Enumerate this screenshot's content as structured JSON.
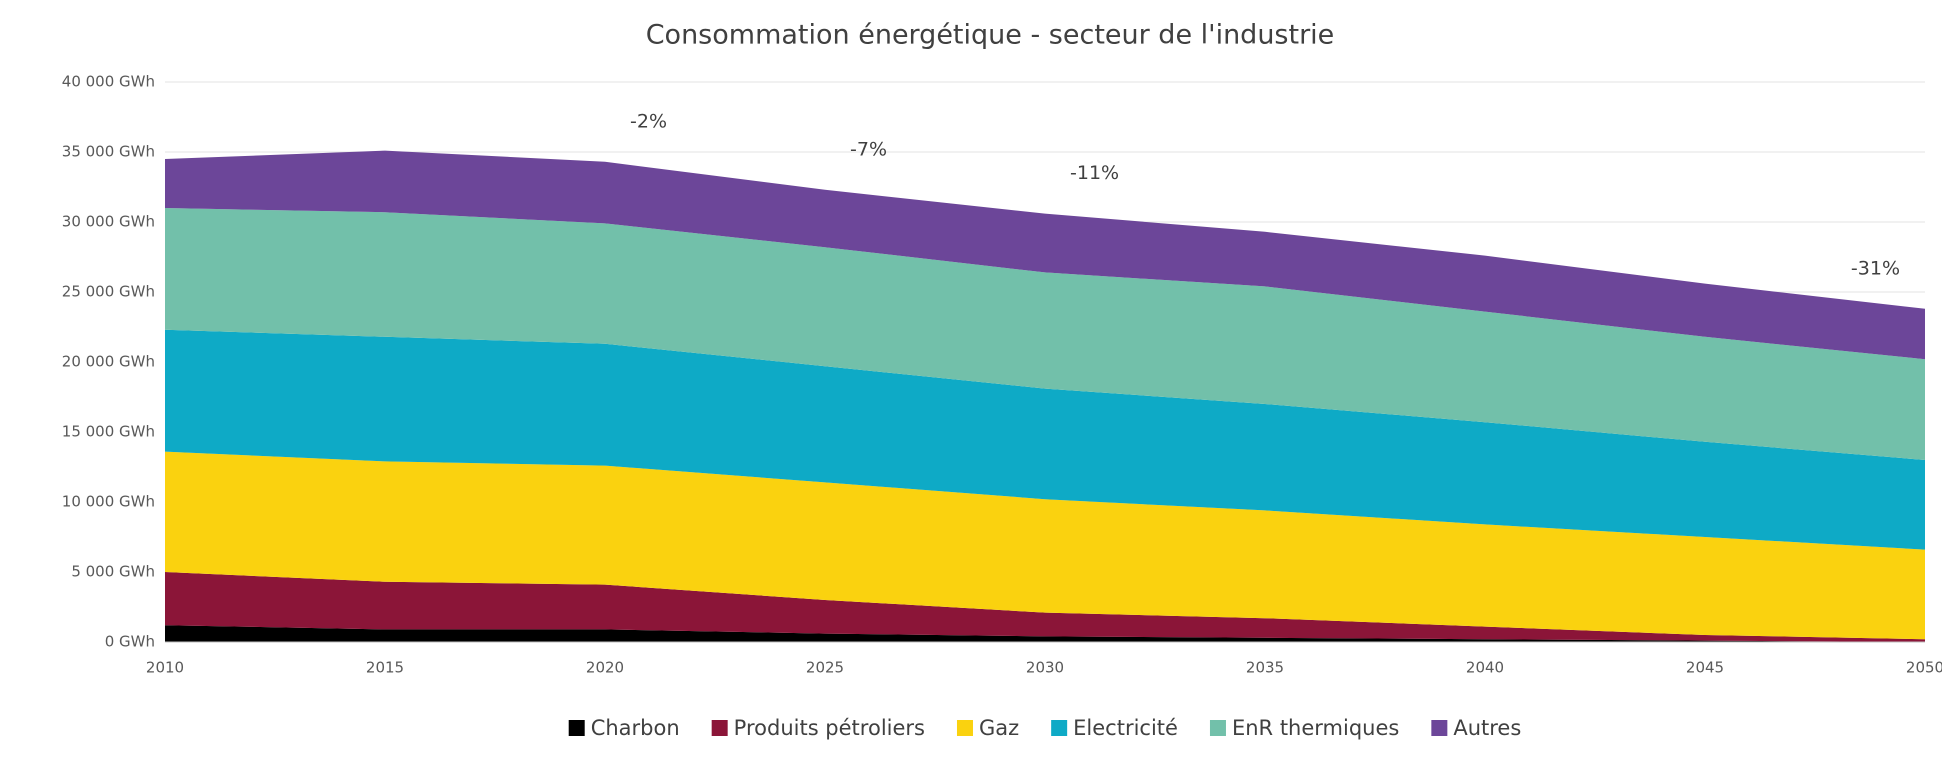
{
  "chart_data": {
    "type": "stacked_area",
    "title": "Consommation énergétique  - secteur de l'industrie",
    "x": [
      2010,
      2015,
      2020,
      2025,
      2030,
      2035,
      2040,
      2045,
      2050
    ],
    "series": [
      {
        "name": "Charbon",
        "color": "#000000",
        "values": [
          1200,
          900,
          900,
          600,
          400,
          300,
          200,
          100,
          0
        ]
      },
      {
        "name": "Produits pétroliers",
        "color": "#8b1538",
        "values": [
          3800,
          3400,
          3200,
          2400,
          1700,
          1400,
          900,
          400,
          200
        ]
      },
      {
        "name": "Gaz",
        "color": "#fad20f",
        "values": [
          8600,
          8600,
          8500,
          8400,
          8100,
          7700,
          7300,
          7000,
          6400
        ]
      },
      {
        "name": "Electricité",
        "color": "#0eaac6",
        "values": [
          8700,
          8900,
          8700,
          8300,
          7900,
          7600,
          7300,
          6800,
          6400
        ]
      },
      {
        "name": "EnR thermiques",
        "color": "#72c0aa",
        "values": [
          8700,
          8900,
          8600,
          8500,
          8300,
          8400,
          7900,
          7500,
          7200
        ]
      },
      {
        "name": "Autres",
        "color": "#6c4699",
        "values": [
          3500,
          4400,
          4400,
          4100,
          4200,
          3900,
          4000,
          3800,
          3600
        ]
      }
    ],
    "xlim": [
      2010,
      2050
    ],
    "xticks": [
      2010,
      2015,
      2020,
      2025,
      2030,
      2035,
      2040,
      2045,
      2050
    ],
    "ylim": [
      0,
      40000
    ],
    "yticks": [
      {
        "value": 0,
        "label": "0 GWh"
      },
      {
        "value": 5000,
        "label": "5 000 GWh"
      },
      {
        "value": 10000,
        "label": "10 000 GWh"
      },
      {
        "value": 15000,
        "label": "15 000 GWh"
      },
      {
        "value": 20000,
        "label": "20 000 GWh"
      },
      {
        "value": 25000,
        "label": "25 000 GWh"
      },
      {
        "value": 30000,
        "label": "30 000 GWh"
      },
      {
        "value": 35000,
        "label": "35 000 GWh"
      },
      {
        "value": 40000,
        "label": "40 000 GWh"
      }
    ],
    "grid": true,
    "legend": "bottom",
    "annotations": [
      {
        "text": "-2%",
        "x": 2020
      },
      {
        "text": "-7%",
        "x": 2025
      },
      {
        "text": "-11%",
        "x": 2030
      },
      {
        "text": "-31%",
        "x": 2050
      }
    ]
  }
}
